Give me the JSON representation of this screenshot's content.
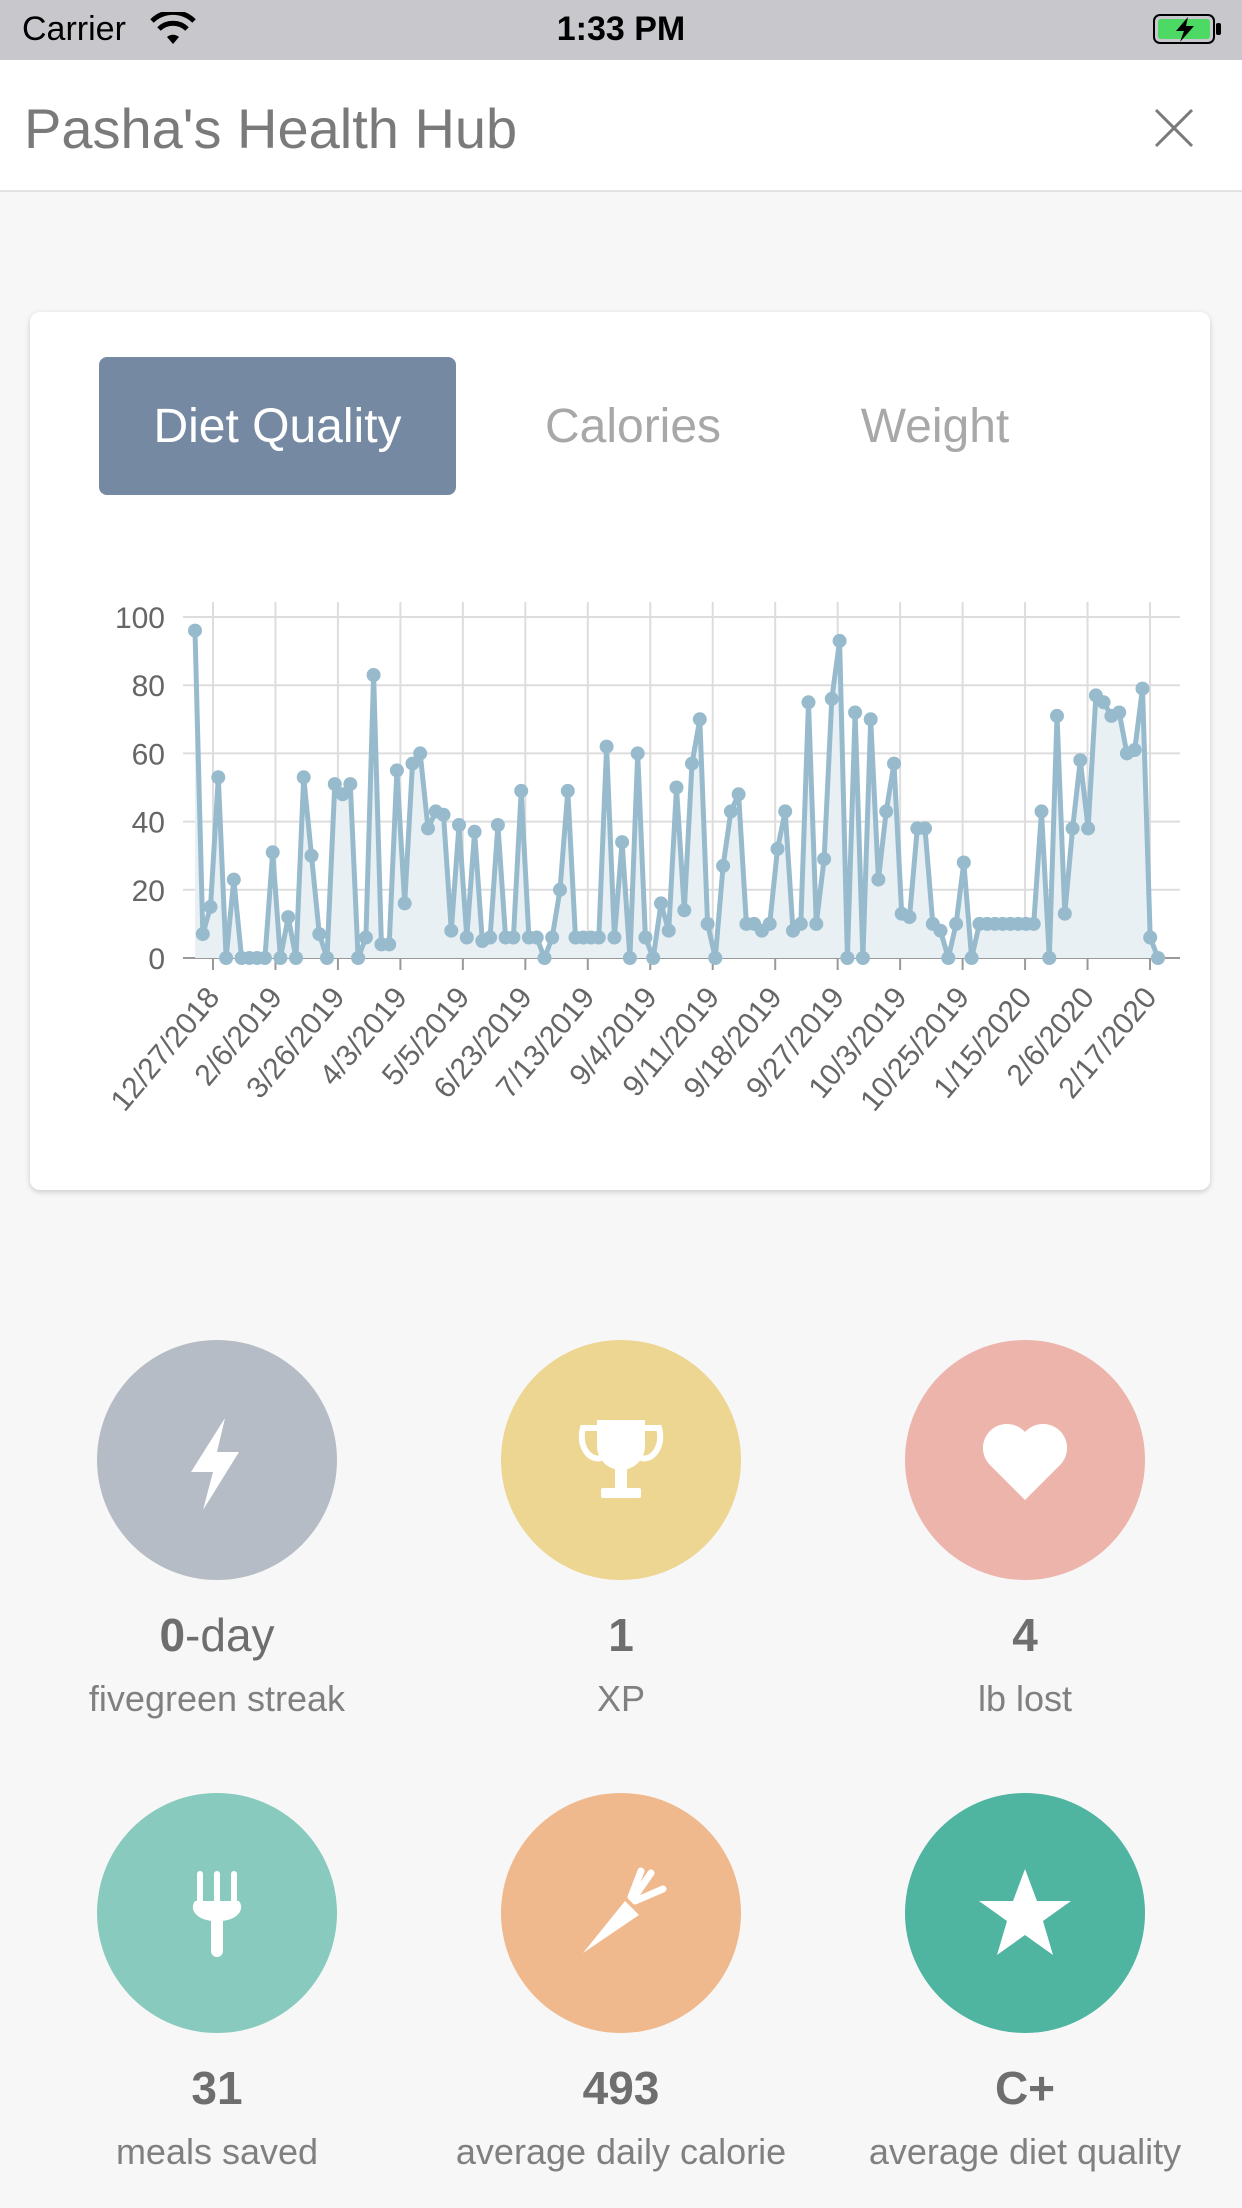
{
  "status_bar": {
    "carrier": "Carrier",
    "time": "1:33 PM"
  },
  "header": {
    "title": "Pasha's Health Hub"
  },
  "tabs": [
    {
      "label": "Diet Quality",
      "active": true
    },
    {
      "label": "Calories",
      "active": false
    },
    {
      "label": "Weight",
      "active": false
    }
  ],
  "chart_data": {
    "type": "area",
    "grid": true,
    "ylim": [
      0,
      100
    ],
    "yticks": [
      0,
      20,
      40,
      60,
      80,
      100
    ],
    "xtick_labels": [
      "12/27/2018",
      "2/6/2019",
      "3/26/2019",
      "4/3/2019",
      "5/5/2019",
      "6/23/2019",
      "7/13/2019",
      "9/4/2019",
      "9/11/2019",
      "9/18/2019",
      "9/27/2019",
      "10/3/2019",
      "10/25/2019",
      "1/15/2020",
      "2/6/2020",
      "2/17/2020"
    ],
    "values": [
      96,
      7,
      15,
      53,
      0,
      23,
      0,
      0,
      0,
      0,
      31,
      0,
      12,
      0,
      53,
      30,
      7,
      0,
      51,
      48,
      51,
      0,
      6,
      83,
      4,
      4,
      55,
      16,
      57,
      60,
      38,
      43,
      42,
      8,
      39,
      6,
      37,
      5,
      6,
      39,
      6,
      6,
      49,
      6,
      6,
      0,
      6,
      20,
      49,
      6,
      6,
      6,
      6,
      62,
      6,
      34,
      0,
      60,
      6,
      0,
      16,
      8,
      50,
      14,
      57,
      70,
      10,
      0,
      27,
      43,
      48,
      10,
      10,
      8,
      10,
      32,
      43,
      8,
      10,
      75,
      10,
      29,
      76,
      93,
      0,
      72,
      0,
      70,
      23,
      43,
      57,
      13,
      12,
      38,
      38,
      10,
      8,
      0,
      10,
      28,
      0,
      10,
      10,
      10,
      10,
      10,
      10,
      10,
      10,
      43,
      0,
      71,
      13,
      38,
      58,
      38,
      77,
      75,
      71,
      72,
      60,
      61,
      79,
      6,
      0
    ],
    "colors": {
      "line": "#97bbcd",
      "fill": "#e8f0f4",
      "grid": "#dddddd",
      "axis": "#999999",
      "tick_text": "#666666"
    }
  },
  "stats": [
    {
      "value_bold": "0",
      "value_rest": "-day",
      "label": "fivegreen streak",
      "icon": "lightning-icon",
      "color": "#b6bcc6"
    },
    {
      "value_bold": "1",
      "value_rest": "",
      "label": "XP",
      "icon": "trophy-icon",
      "color": "#edd592"
    },
    {
      "value_bold": "4",
      "value_rest": "",
      "label": "lb lost",
      "icon": "heart-icon",
      "color": "#ecb4aa"
    },
    {
      "value_bold": "31",
      "value_rest": "",
      "label": "meals saved",
      "icon": "fork-icon",
      "color": "#88cbbe"
    },
    {
      "value_bold": "493",
      "value_rest": "",
      "label": "average daily calorie",
      "icon": "carrot-icon",
      "color": "#efb98d"
    },
    {
      "value_bold": "C+",
      "value_rest": "",
      "label": "average diet quality",
      "icon": "star-icon",
      "color": "#4fb4a0"
    }
  ]
}
